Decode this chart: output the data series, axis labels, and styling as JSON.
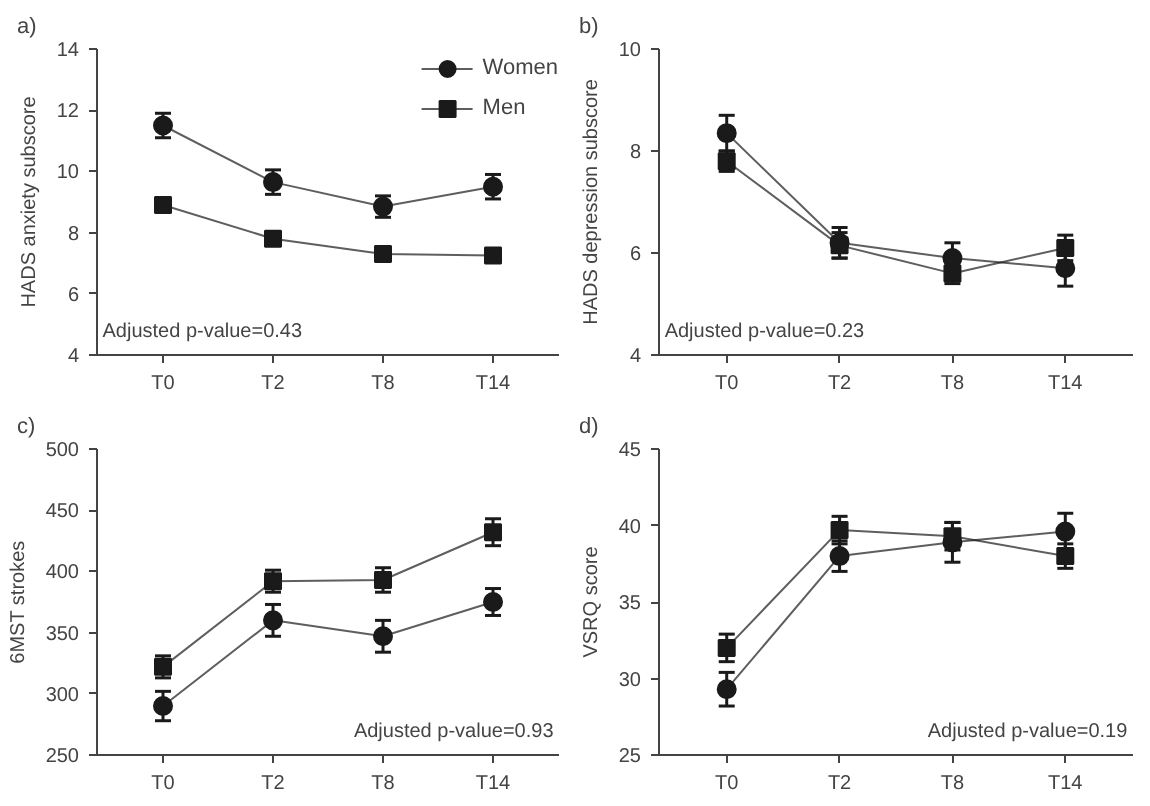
{
  "chart_data": [
    {
      "type": "line",
      "title": "a)",
      "ylabel": "HADS anxiety subscore",
      "categories": [
        "T0",
        "T2",
        "T8",
        "T14"
      ],
      "ylim": [
        4,
        14
      ],
      "yticks": [
        4,
        6,
        8,
        10,
        12,
        14
      ],
      "grid": false,
      "legend": "top right",
      "annotations": [
        "Adjusted p-value=0.43"
      ],
      "series": [
        {
          "name": "Women",
          "color": "#1a1a1a",
          "marker": "circle",
          "values": [
            11.5,
            9.65,
            8.85,
            9.5
          ],
          "errors": [
            0.4,
            0.4,
            0.35,
            0.4
          ]
        },
        {
          "name": "Men",
          "color": "#1a1a1a",
          "marker": "square",
          "values": [
            8.9,
            7.8,
            7.3,
            7.25
          ],
          "errors": [
            0.2,
            0.15,
            0.15,
            0.15
          ]
        }
      ]
    },
    {
      "type": "line",
      "title": "b)",
      "ylabel": "HADS depression subscore",
      "categories": [
        "T0",
        "T2",
        "T8",
        "T14"
      ],
      "ylim": [
        4,
        10
      ],
      "yticks": [
        4,
        6,
        8,
        10
      ],
      "grid": false,
      "annotations": [
        "Adjusted p-value=0.23"
      ],
      "series": [
        {
          "color": "#1a1a1a",
          "marker": "circle",
          "values": [
            8.35,
            6.2,
            5.9,
            5.7
          ],
          "errors": [
            0.35,
            0.3,
            0.3,
            0.35
          ]
        },
        {
          "color": "#1a1a1a",
          "marker": "square",
          "values": [
            7.8,
            6.15,
            5.6,
            6.1
          ],
          "errors": [
            0.2,
            0.25,
            0.2,
            0.25
          ]
        }
      ]
    },
    {
      "type": "line",
      "title": "c)",
      "ylabel": "6MST strokes",
      "categories": [
        "T0",
        "T2",
        "T8",
        "T14"
      ],
      "ylim": [
        250,
        500
      ],
      "yticks": [
        250,
        300,
        350,
        400,
        450,
        500
      ],
      "grid": false,
      "annotations": [
        "Adjusted p-value=0.93"
      ],
      "series": [
        {
          "color": "#1a1a1a",
          "marker": "circle",
          "values": [
            290,
            360,
            347,
            375
          ],
          "errors": [
            12,
            13,
            13,
            11
          ]
        },
        {
          "color": "#1a1a1a",
          "marker": "square",
          "values": [
            322,
            392,
            393,
            432
          ],
          "errors": [
            9,
            9,
            10,
            11
          ]
        }
      ]
    },
    {
      "type": "line",
      "title": "d)",
      "ylabel": "VSRQ score",
      "categories": [
        "T0",
        "T2",
        "T8",
        "T14"
      ],
      "ylim": [
        25,
        45
      ],
      "yticks": [
        25,
        30,
        35,
        40,
        45
      ],
      "grid": false,
      "annotations": [
        "Adjusted p-value=0.19"
      ],
      "series": [
        {
          "color": "#1a1a1a",
          "marker": "circle",
          "values": [
            29.3,
            38,
            38.9,
            39.6
          ],
          "errors": [
            1.1,
            1,
            1.3,
            1.2
          ]
        },
        {
          "color": "#1a1a1a",
          "marker": "square",
          "values": [
            32,
            39.7,
            39.3,
            38
          ],
          "errors": [
            0.9,
            0.9,
            0.9,
            0.8
          ]
        }
      ]
    }
  ]
}
